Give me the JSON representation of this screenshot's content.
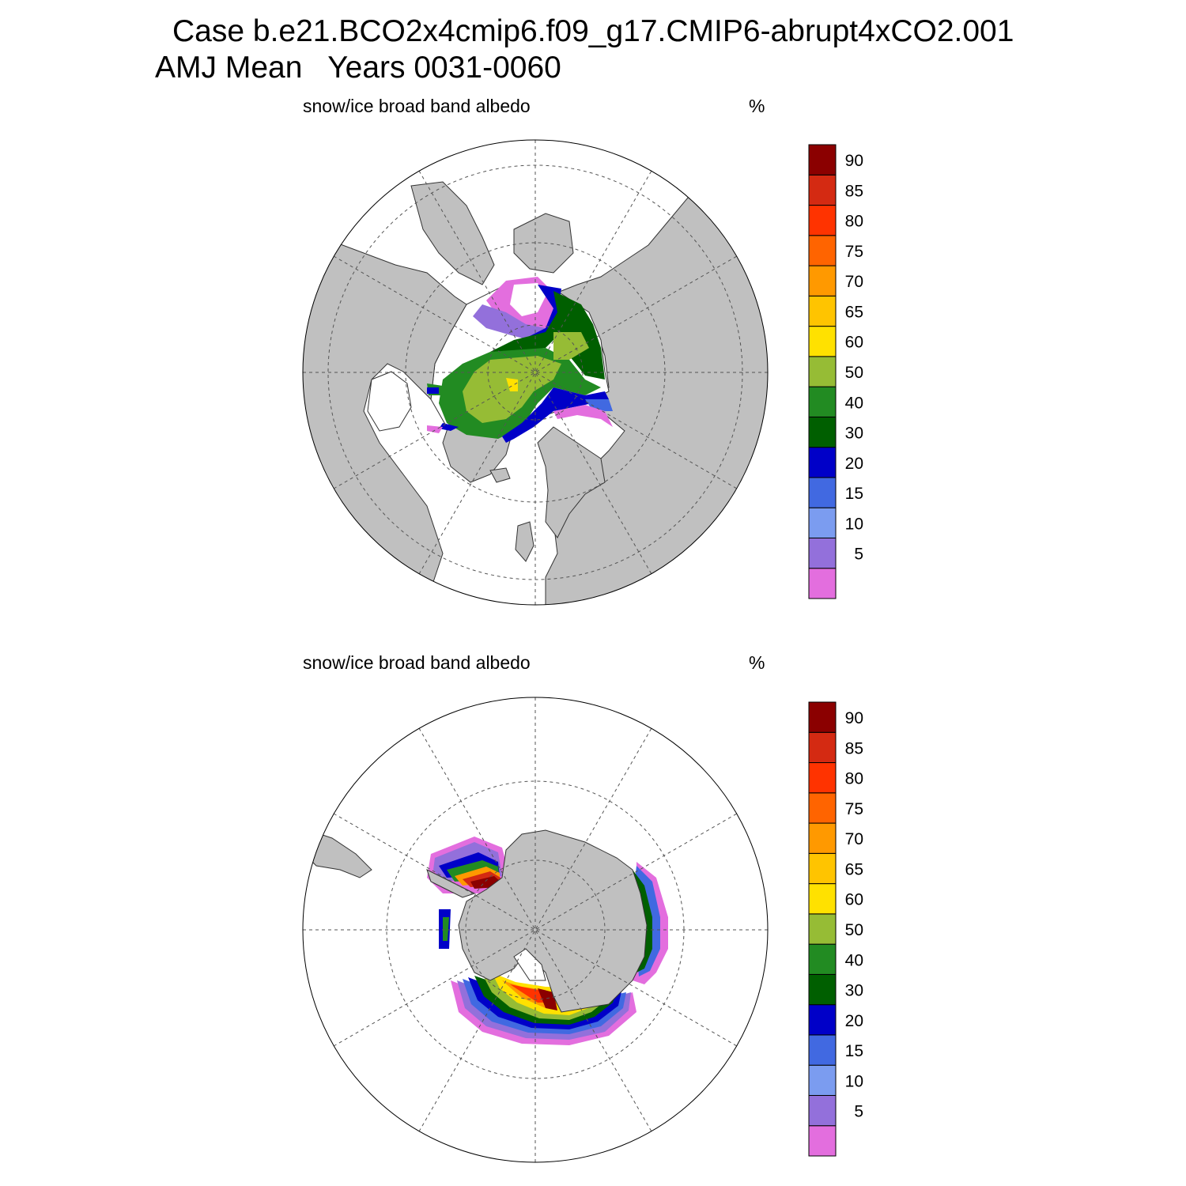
{
  "title_line1": "Case b.e21.BCO2x4cmip6.f09_g17.CMIP6-abrupt4xCO2.001",
  "title_season": "AMJ Mean",
  "title_years": "Years 0031-0060",
  "colors": {
    "land": "#c0c0c0",
    "ocean": "#ffffff",
    "grid": "#555555"
  },
  "colorbar": {
    "levels": [
      "5",
      "10",
      "15",
      "20",
      "30",
      "40",
      "50",
      "60",
      "65",
      "70",
      "75",
      "80",
      "85",
      "90"
    ],
    "colors": [
      "#e36ede",
      "#9370db",
      "#7b9cf0",
      "#4169e1",
      "#0000c8",
      "#005f00",
      "#228b22",
      "#96bc35",
      "#ffe100",
      "#ffc400",
      "#ff9900",
      "#ff6400",
      "#ff3300",
      "#d42a12",
      "#8b0000"
    ]
  },
  "panels": [
    {
      "id": "north",
      "hemisphere": "Northern Hemisphere",
      "label": "snow/ice broad band albedo",
      "unit": "%"
    },
    {
      "id": "south",
      "hemisphere": "Southern Hemisphere",
      "label": "snow/ice broad band albedo",
      "unit": "%"
    }
  ]
}
